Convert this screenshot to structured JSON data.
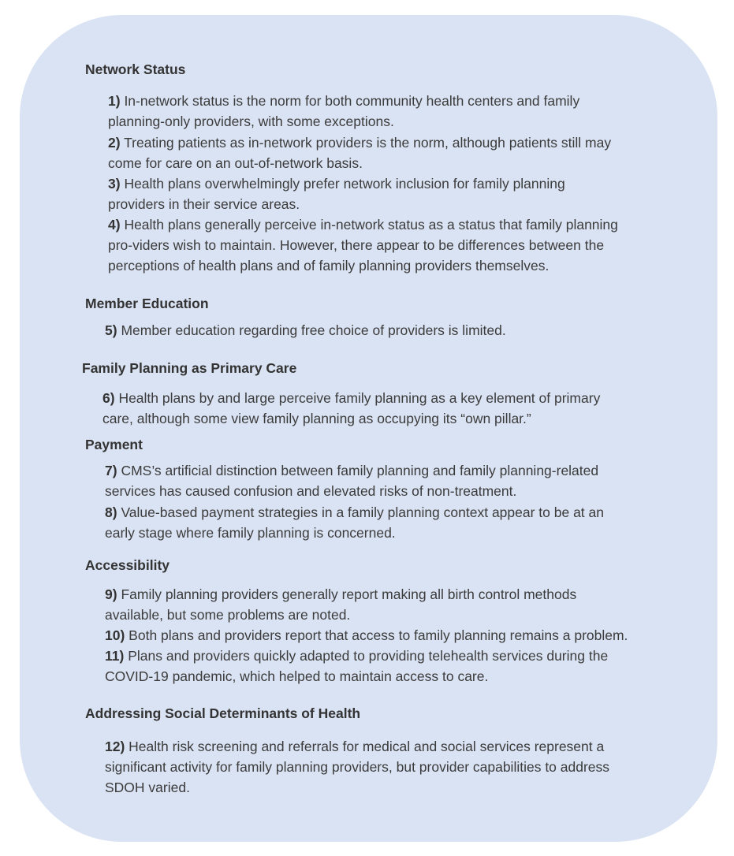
{
  "sections": [
    {
      "heading": "Network Status",
      "items": [
        {
          "num": "1)",
          "lines": [
            "In-network status is the norm for both community health centers and family",
            "planning-only providers, with some exceptions."
          ]
        },
        {
          "num": "2)",
          "lines": [
            "Treating patients as in-network providers is the norm, although patients still may",
            "come for care on an out-of-network basis."
          ]
        },
        {
          "num": "3)",
          "lines": [
            "Health plans overwhelmingly prefer network inclusion for family planning",
            "providers in their service areas."
          ]
        },
        {
          "num": "4)",
          "lines": [
            "Health plans generally perceive in-network status as a status that family planning",
            "pro-viders wish to maintain. However, there appear to be differences between the",
            "perceptions of health plans and of family planning providers themselves."
          ]
        }
      ]
    },
    {
      "heading": "Member Education",
      "items": [
        {
          "num": "5)",
          "lines": [
            "Member education regarding free choice of providers is limited."
          ]
        }
      ]
    },
    {
      "heading": "Family Planning as Primary Care",
      "items": [
        {
          "num": "6)",
          "lines": [
            "Health plans by and large perceive family planning as a key element of primary",
            "care, although some view family planning as occupying its “own pillar.”"
          ]
        }
      ]
    },
    {
      "heading": "Payment",
      "items": [
        {
          "num": "7)",
          "lines": [
            "CMS’s artificial distinction between family planning and family planning-related",
            "services has caused confusion and elevated risks of non-treatment."
          ]
        },
        {
          "num": "8)",
          "lines": [
            "Value-based payment strategies in a family planning context appear to be at an",
            "early stage where family planning is concerned."
          ]
        }
      ]
    },
    {
      "heading": "Accessibility",
      "items": [
        {
          "num": "9)",
          "lines": [
            "Family planning providers generally report making all birth control methods",
            "available, but some problems are noted."
          ]
        },
        {
          "num": "10)",
          "lines": [
            "Both plans and providers report that access to family planning remains a problem."
          ]
        },
        {
          "num": "11)",
          "lines": [
            "Plans and providers quickly adapted to providing telehealth services during the",
            "COVID-19 pandemic, which helped to maintain access to care."
          ]
        }
      ]
    },
    {
      "heading": "Addressing Social Determinants of Health",
      "items": [
        {
          "num": "12)",
          "lines": [
            "Health risk screening and referrals for medical and social services represent a",
            "significant activity for family planning providers, but provider capabilities to address",
            "SDOH varied."
          ]
        }
      ]
    }
  ],
  "colors": {
    "panel": "#dae3f3",
    "text": "#3b3b3b"
  }
}
